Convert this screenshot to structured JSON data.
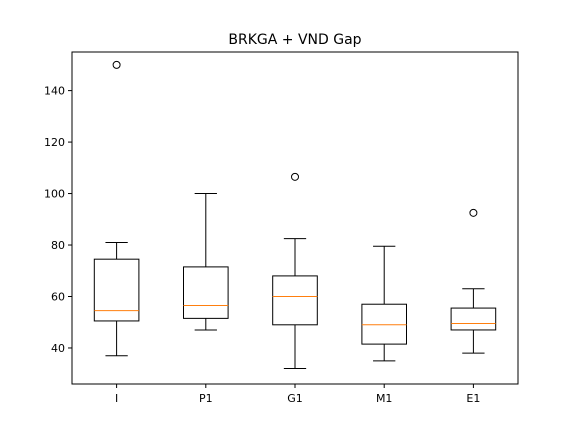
{
  "chart_data": {
    "type": "box",
    "title": "BRKGA + VND Gap",
    "xlabel": "",
    "ylabel": "",
    "ylim": [
      26,
      155
    ],
    "yticks": [
      40,
      60,
      80,
      100,
      120,
      140
    ],
    "categories": [
      "I",
      "P1",
      "G1",
      "M1",
      "E1"
    ],
    "boxes": [
      {
        "label": "I",
        "whisker_low": 37,
        "q1": 50.5,
        "median": 54.5,
        "q3": 74.5,
        "whisker_high": 81,
        "outliers": [
          150
        ]
      },
      {
        "label": "P1",
        "whisker_low": 47,
        "q1": 51.5,
        "median": 56.5,
        "q3": 71.5,
        "whisker_high": 100,
        "outliers": []
      },
      {
        "label": "G1",
        "whisker_low": 32,
        "q1": 49,
        "median": 60,
        "q3": 68,
        "whisker_high": 82.5,
        "outliers": [
          106.5
        ]
      },
      {
        "label": "M1",
        "whisker_low": 35,
        "q1": 41.5,
        "median": 49,
        "q3": 57,
        "whisker_high": 79.5,
        "outliers": []
      },
      {
        "label": "E1",
        "whisker_low": 38,
        "q1": 47,
        "median": 49.5,
        "q3": 55.5,
        "whisker_high": 63,
        "outliers": [
          92.5
        ]
      }
    ],
    "grid": false,
    "colors": {
      "box": "#000000",
      "median": "#ff7f0e",
      "outlier_edge": "#000000"
    }
  }
}
